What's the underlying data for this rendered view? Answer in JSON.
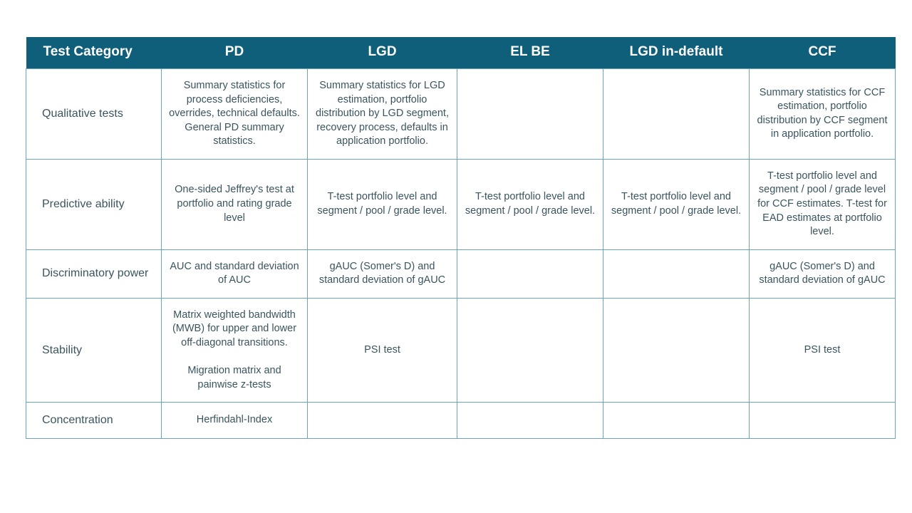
{
  "table": {
    "header_bg": "#0f5f7a",
    "header_fg": "#ffffff",
    "border_color": "#6aa6b8",
    "cell_fg": "#3a5560",
    "columns": [
      {
        "key": "cat",
        "label": "Test Category"
      },
      {
        "key": "pd",
        "label": "PD"
      },
      {
        "key": "lgd",
        "label": "LGD"
      },
      {
        "key": "elbe",
        "label": "EL BE"
      },
      {
        "key": "lgdd",
        "label": "LGD in-default"
      },
      {
        "key": "ccf",
        "label": "CCF"
      }
    ],
    "rows": [
      {
        "cat": "Qualitative tests",
        "pd": "Summary statistics for process deficiencies, overrides, technical defaults. General PD summary statistics.",
        "lgd": "Summary statistics for LGD estimation, portfolio distribution by LGD segment, recovery process, defaults in application portfolio.",
        "elbe": "",
        "lgdd": "",
        "ccf": "Summary statistics for CCF estimation, portfolio distribution by CCF segment in application portfolio."
      },
      {
        "cat": "Predictive ability",
        "pd": "One-sided Jeffrey's test at portfolio and  rating grade level",
        "lgd": "T-test portfolio level and segment / pool / grade level.",
        "elbe": "T-test portfolio level and segment / pool / grade level.",
        "lgdd": "T-test portfolio level and segment / pool / grade level.",
        "ccf": "T-test portfolio level and segment / pool / grade level for CCF estimates. T-test for EAD estimates at portfolio level."
      },
      {
        "cat": "Discriminatory power",
        "pd": "AUC and standard deviation of AUC",
        "lgd": "gAUC (Somer's D) and standard deviation of gAUC",
        "elbe": "",
        "lgdd": "",
        "ccf": "gAUC (Somer's D) and standard deviation of gAUC"
      },
      {
        "cat": "Stability",
        "pd": "Matrix weighted bandwidth (MWB) for upper and lower off-diagonal transitions.\n\nMigration matrix and painwise z-tests",
        "lgd": "PSI test",
        "elbe": "",
        "lgdd": "",
        "ccf": "PSI test"
      },
      {
        "cat": "Concentration",
        "pd": "Herfindahl-Index",
        "lgd": "",
        "elbe": "",
        "lgdd": "",
        "ccf": ""
      }
    ]
  }
}
